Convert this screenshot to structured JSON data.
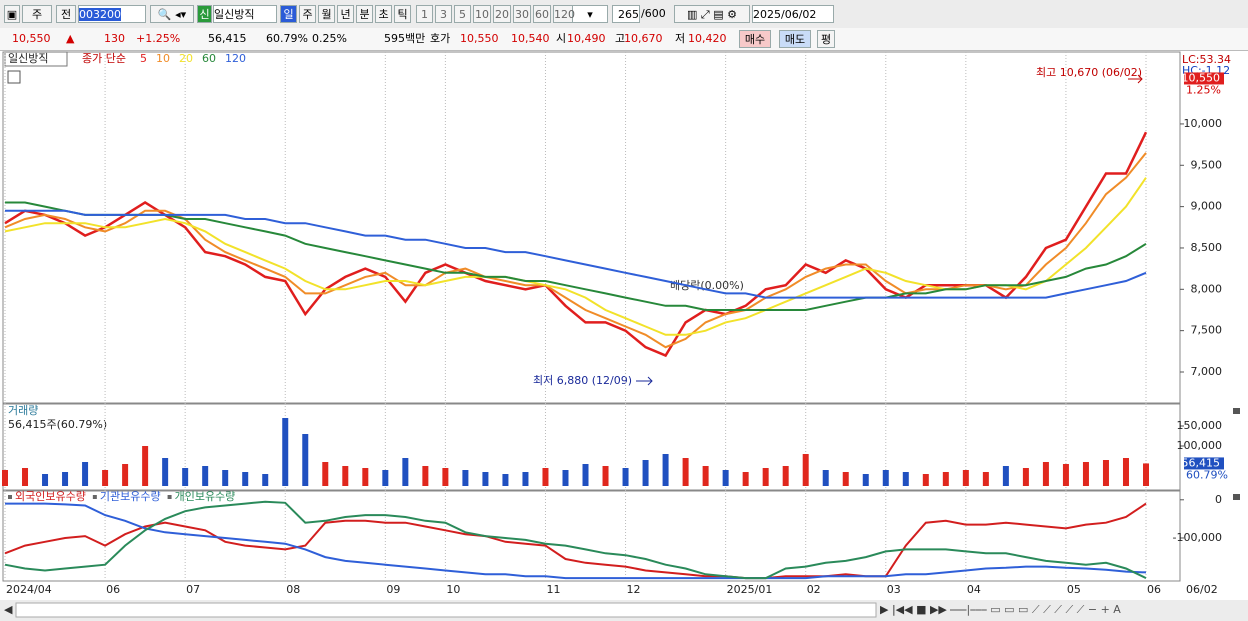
{
  "toolbar": {
    "period": "주",
    "scope": "전",
    "code": "003200",
    "badge": "신",
    "name": "일신방직",
    "intervals": [
      "일",
      "주",
      "월",
      "년",
      "분",
      "초",
      "틱"
    ],
    "minutes": [
      "1",
      "3",
      "5",
      "10",
      "20",
      "30",
      "60",
      "120"
    ],
    "count": "265",
    "max": "/600",
    "date": "2025/06/02"
  },
  "quote": {
    "price": "10,550",
    "arrow": "▲",
    "change": "130",
    "change_pct": "+1.25%",
    "volume": "56,415",
    "volume_ratio": "60.79%",
    "turnover": "0.25%",
    "amount": "595백만",
    "bid_ask_label": "호가",
    "ask": "10,550",
    "bid": "10,540",
    "open_label": "시",
    "open": "10,490",
    "high_label": "고",
    "high": "10,670",
    "low_label": "저",
    "low": "10,420",
    "buy": "매수",
    "sell": "매도",
    "avg": "평"
  },
  "chart_data": [
    {
      "type": "line",
      "title": "일신방직",
      "legend_prefix": "종가 단순",
      "series": [
        {
          "name": "5",
          "color": "#e01e1e",
          "values": [
            8800,
            8950,
            8900,
            8800,
            8650,
            8750,
            8900,
            9050,
            8900,
            8750,
            8450,
            8400,
            8300,
            8150,
            8100,
            7700,
            8000,
            8150,
            8250,
            8150,
            7850,
            8200,
            8300,
            8200,
            8100,
            8050,
            8000,
            8050,
            7800,
            7600,
            7600,
            7500,
            7300,
            7200,
            7600,
            7750,
            7700,
            7800,
            8000,
            8050,
            8300,
            8200,
            8350,
            8250,
            8000,
            7900,
            8050,
            8050,
            8050,
            8050,
            7900,
            8150,
            8500,
            8600,
            9000,
            9400,
            9400,
            9900
          ]
        },
        {
          "name": "10",
          "color": "#f08c28",
          "values": [
            8750,
            8850,
            8900,
            8850,
            8750,
            8700,
            8800,
            8950,
            8950,
            8850,
            8600,
            8450,
            8350,
            8250,
            8150,
            7950,
            7950,
            8050,
            8150,
            8200,
            8050,
            8050,
            8200,
            8250,
            8150,
            8100,
            8050,
            8050,
            7900,
            7750,
            7650,
            7550,
            7450,
            7300,
            7400,
            7600,
            7700,
            7750,
            7900,
            8000,
            8150,
            8250,
            8300,
            8300,
            8100,
            7950,
            8000,
            8000,
            8050,
            8050,
            8000,
            8050,
            8300,
            8500,
            8800,
            9150,
            9350,
            9650
          ]
        },
        {
          "name": "20",
          "color": "#f2e22a",
          "values": [
            8700,
            8750,
            8800,
            8800,
            8800,
            8750,
            8750,
            8800,
            8850,
            8800,
            8700,
            8550,
            8450,
            8350,
            8250,
            8100,
            8000,
            8000,
            8050,
            8100,
            8100,
            8050,
            8100,
            8150,
            8150,
            8150,
            8100,
            8050,
            8000,
            7900,
            7750,
            7650,
            7550,
            7450,
            7450,
            7500,
            7600,
            7650,
            7750,
            7850,
            7950,
            8050,
            8150,
            8250,
            8200,
            8100,
            8050,
            8000,
            8000,
            8050,
            8050,
            8000,
            8100,
            8300,
            8500,
            8750,
            9000,
            9350
          ]
        },
        {
          "name": "60",
          "color": "#27883a",
          "values": [
            9050,
            9050,
            9000,
            8950,
            8900,
            8900,
            8900,
            8900,
            8900,
            8850,
            8850,
            8800,
            8750,
            8700,
            8650,
            8550,
            8500,
            8450,
            8400,
            8350,
            8300,
            8250,
            8200,
            8200,
            8150,
            8150,
            8100,
            8100,
            8050,
            8000,
            7950,
            7900,
            7850,
            7800,
            7800,
            7750,
            7750,
            7750,
            7750,
            7750,
            7750,
            7800,
            7850,
            7900,
            7900,
            7950,
            7950,
            8000,
            8000,
            8050,
            8050,
            8050,
            8100,
            8150,
            8250,
            8300,
            8400,
            8550
          ]
        },
        {
          "name": "120",
          "color": "#2f5fd8",
          "values": [
            8950,
            8950,
            8950,
            8950,
            8900,
            8900,
            8900,
            8900,
            8900,
            8900,
            8900,
            8900,
            8850,
            8850,
            8800,
            8800,
            8750,
            8700,
            8650,
            8650,
            8600,
            8600,
            8550,
            8500,
            8500,
            8450,
            8450,
            8400,
            8350,
            8300,
            8250,
            8200,
            8150,
            8100,
            8050,
            8000,
            7950,
            7950,
            7900,
            7900,
            7900,
            7900,
            7900,
            7900,
            7900,
            7900,
            7900,
            7900,
            7900,
            7900,
            7900,
            7900,
            7900,
            7950,
            8000,
            8050,
            8100,
            8200
          ]
        }
      ],
      "ylim": [
        6625,
        10870
      ],
      "yticks": [
        {
          "value": 10000,
          "label": "10,000"
        },
        {
          "value": 9500,
          "label": "9,500"
        },
        {
          "value": 9000,
          "label": "9,000"
        },
        {
          "value": 8500,
          "label": "8,500"
        },
        {
          "value": 8000,
          "label": "8,000"
        },
        {
          "value": 7500,
          "label": "7,500"
        },
        {
          "value": 7000,
          "label": "7,000"
        }
      ],
      "annotations": {
        "high": "최고 10,670 (06/02)",
        "low": "최저 6,880 (12/09)",
        "dividend": "배당락(0.00%)"
      },
      "side_labels": [
        "LC:53.34",
        "HC:-1.12"
      ],
      "last": {
        "value": 10550,
        "label": "10,550"
      },
      "last_pct": "1.25%"
    },
    {
      "type": "bar",
      "title": "거래량",
      "subtitle": "56,415주(60.79%)",
      "values": [
        40000,
        45000,
        30000,
        35000,
        60000,
        40000,
        55000,
        100000,
        70000,
        45000,
        50000,
        40000,
        35000,
        30000,
        170000,
        130000,
        60000,
        50000,
        45000,
        40000,
        70000,
        50000,
        45000,
        40000,
        35000,
        30000,
        35000,
        45000,
        40000,
        55000,
        50000,
        45000,
        65000,
        80000,
        70000,
        50000,
        40000,
        35000,
        45000,
        50000,
        80000,
        40000,
        35000,
        30000,
        40000,
        35000,
        30000,
        35000,
        40000,
        35000,
        50000,
        45000,
        60000,
        55000,
        60000,
        65000,
        70000,
        56415
      ],
      "colors": {
        "up": "#e0281e",
        "down": "#2050c0"
      },
      "ylim": [
        0,
        205000
      ],
      "yticks": [
        {
          "value": 150000,
          "label": "150,000"
        },
        {
          "value": 100000,
          "label": "100,000"
        }
      ],
      "last": {
        "value": 56415,
        "label": "56,415"
      },
      "last_pct": "60.79%"
    },
    {
      "type": "line",
      "series": [
        {
          "name": "외국인보유수량",
          "color": "#d21e1e",
          "values": [
            -140000,
            -120000,
            -110000,
            -100000,
            -95000,
            -120000,
            -90000,
            -70000,
            -60000,
            -70000,
            -80000,
            -110000,
            -120000,
            -125000,
            -130000,
            -120000,
            -60000,
            -55000,
            -55000,
            -60000,
            -60000,
            -70000,
            -80000,
            -90000,
            -95000,
            -110000,
            -115000,
            -120000,
            -155000,
            -165000,
            -170000,
            -175000,
            -185000,
            -190000,
            -195000,
            -200000,
            -200000,
            -205000,
            -205000,
            -200000,
            -200000,
            -200000,
            -195000,
            -200000,
            -200000,
            -120000,
            -60000,
            -55000,
            -65000,
            -65000,
            -60000,
            -65000,
            -70000,
            -75000,
            -65000,
            -60000,
            -45000,
            -10000
          ]
        },
        {
          "name": "기관보유수량",
          "color": "#2f5fd8",
          "values": [
            -10000,
            -10000,
            -10000,
            -12000,
            -15000,
            -40000,
            -55000,
            -75000,
            -85000,
            -90000,
            -95000,
            -100000,
            -105000,
            -110000,
            -115000,
            -130000,
            -150000,
            -160000,
            -165000,
            -170000,
            -175000,
            -180000,
            -185000,
            -190000,
            -195000,
            -195000,
            -200000,
            -200000,
            -205000,
            -205000,
            -205000,
            -205000,
            -205000,
            -205000,
            -205000,
            -205000,
            -205000,
            -205000,
            -205000,
            -205000,
            -205000,
            -200000,
            -200000,
            -200000,
            -200000,
            -195000,
            -195000,
            -190000,
            -185000,
            -180000,
            -178000,
            -175000,
            -175000,
            -178000,
            -180000,
            -183000,
            -188000,
            -190000
          ]
        },
        {
          "name": "개인보유수량",
          "color": "#2a8a5a",
          "values": [
            -170000,
            -180000,
            -185000,
            -180000,
            -175000,
            -170000,
            -120000,
            -80000,
            -50000,
            -30000,
            -20000,
            -15000,
            -10000,
            -5000,
            -8000,
            -60000,
            -55000,
            -45000,
            -40000,
            -40000,
            -45000,
            -55000,
            -60000,
            -85000,
            -95000,
            -100000,
            -105000,
            -115000,
            -120000,
            -130000,
            -140000,
            -145000,
            -155000,
            -170000,
            -180000,
            -195000,
            -200000,
            -205000,
            -205000,
            -180000,
            -175000,
            -165000,
            -160000,
            -150000,
            -135000,
            -130000,
            -130000,
            -130000,
            -135000,
            -140000,
            -140000,
            -150000,
            -160000,
            -165000,
            -170000,
            -165000,
            -180000,
            -205000
          ]
        }
      ],
      "ylim": [
        -210000,
        23000
      ],
      "yticks": [
        0,
        {
          "value": -100000,
          "label": "-100,000"
        }
      ],
      "categories": [
        "2024/04",
        null,
        null,
        null,
        null,
        "06",
        null,
        null,
        null,
        "07",
        null,
        null,
        null,
        null,
        "08",
        null,
        null,
        null,
        null,
        "09",
        null,
        null,
        "10",
        null,
        null,
        null,
        null,
        "11",
        null,
        null,
        null,
        "12",
        null,
        null,
        null,
        null,
        "2025/01",
        null,
        null,
        null,
        "02",
        null,
        null,
        null,
        "03",
        null,
        null,
        null,
        "04",
        null,
        null,
        null,
        null,
        "05",
        null,
        null,
        null,
        "06"
      ],
      "last_category": "06/02"
    }
  ]
}
